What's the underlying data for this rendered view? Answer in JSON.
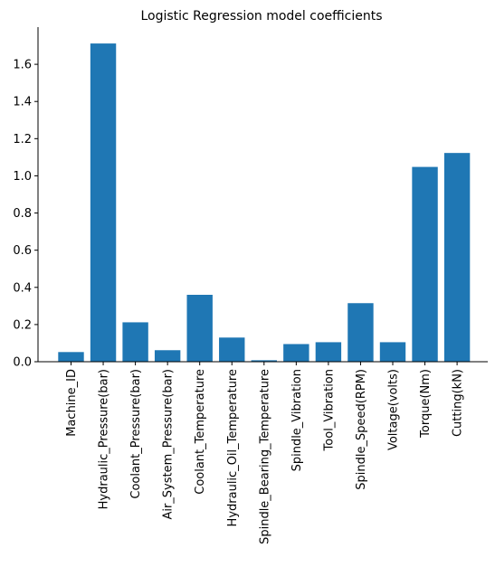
{
  "chart_data": {
    "type": "bar",
    "title": "Logistic Regression model coefficients",
    "xlabel": "",
    "ylabel": "",
    "categories": [
      "Machine_ID",
      "Hydraulic_Pressure(bar)",
      "Coolant_Pressure(bar)",
      "Air_System_Pressure(bar)",
      "Coolant_Temperature",
      "Hydraulic_Oil_Temperature",
      "Spindle_Bearing_Temperature",
      "Spindle_Vibration",
      "Tool_Vibration",
      "Spindle_Speed(RPM)",
      "Voltage(volts)",
      "Torque(Nm)",
      "Cutting(kN)"
    ],
    "values": [
      0.052,
      1.712,
      0.212,
      0.062,
      0.36,
      0.13,
      0.008,
      0.095,
      0.105,
      0.315,
      0.105,
      1.048,
      1.123
    ],
    "ylim": [
      0,
      1.8
    ],
    "yticks": [
      "0.0",
      "0.2",
      "0.4",
      "0.6",
      "0.8",
      "1.0",
      "1.2",
      "1.4",
      "1.6"
    ],
    "bar_color": "#1f77b4",
    "grid": false,
    "legend": "none"
  }
}
